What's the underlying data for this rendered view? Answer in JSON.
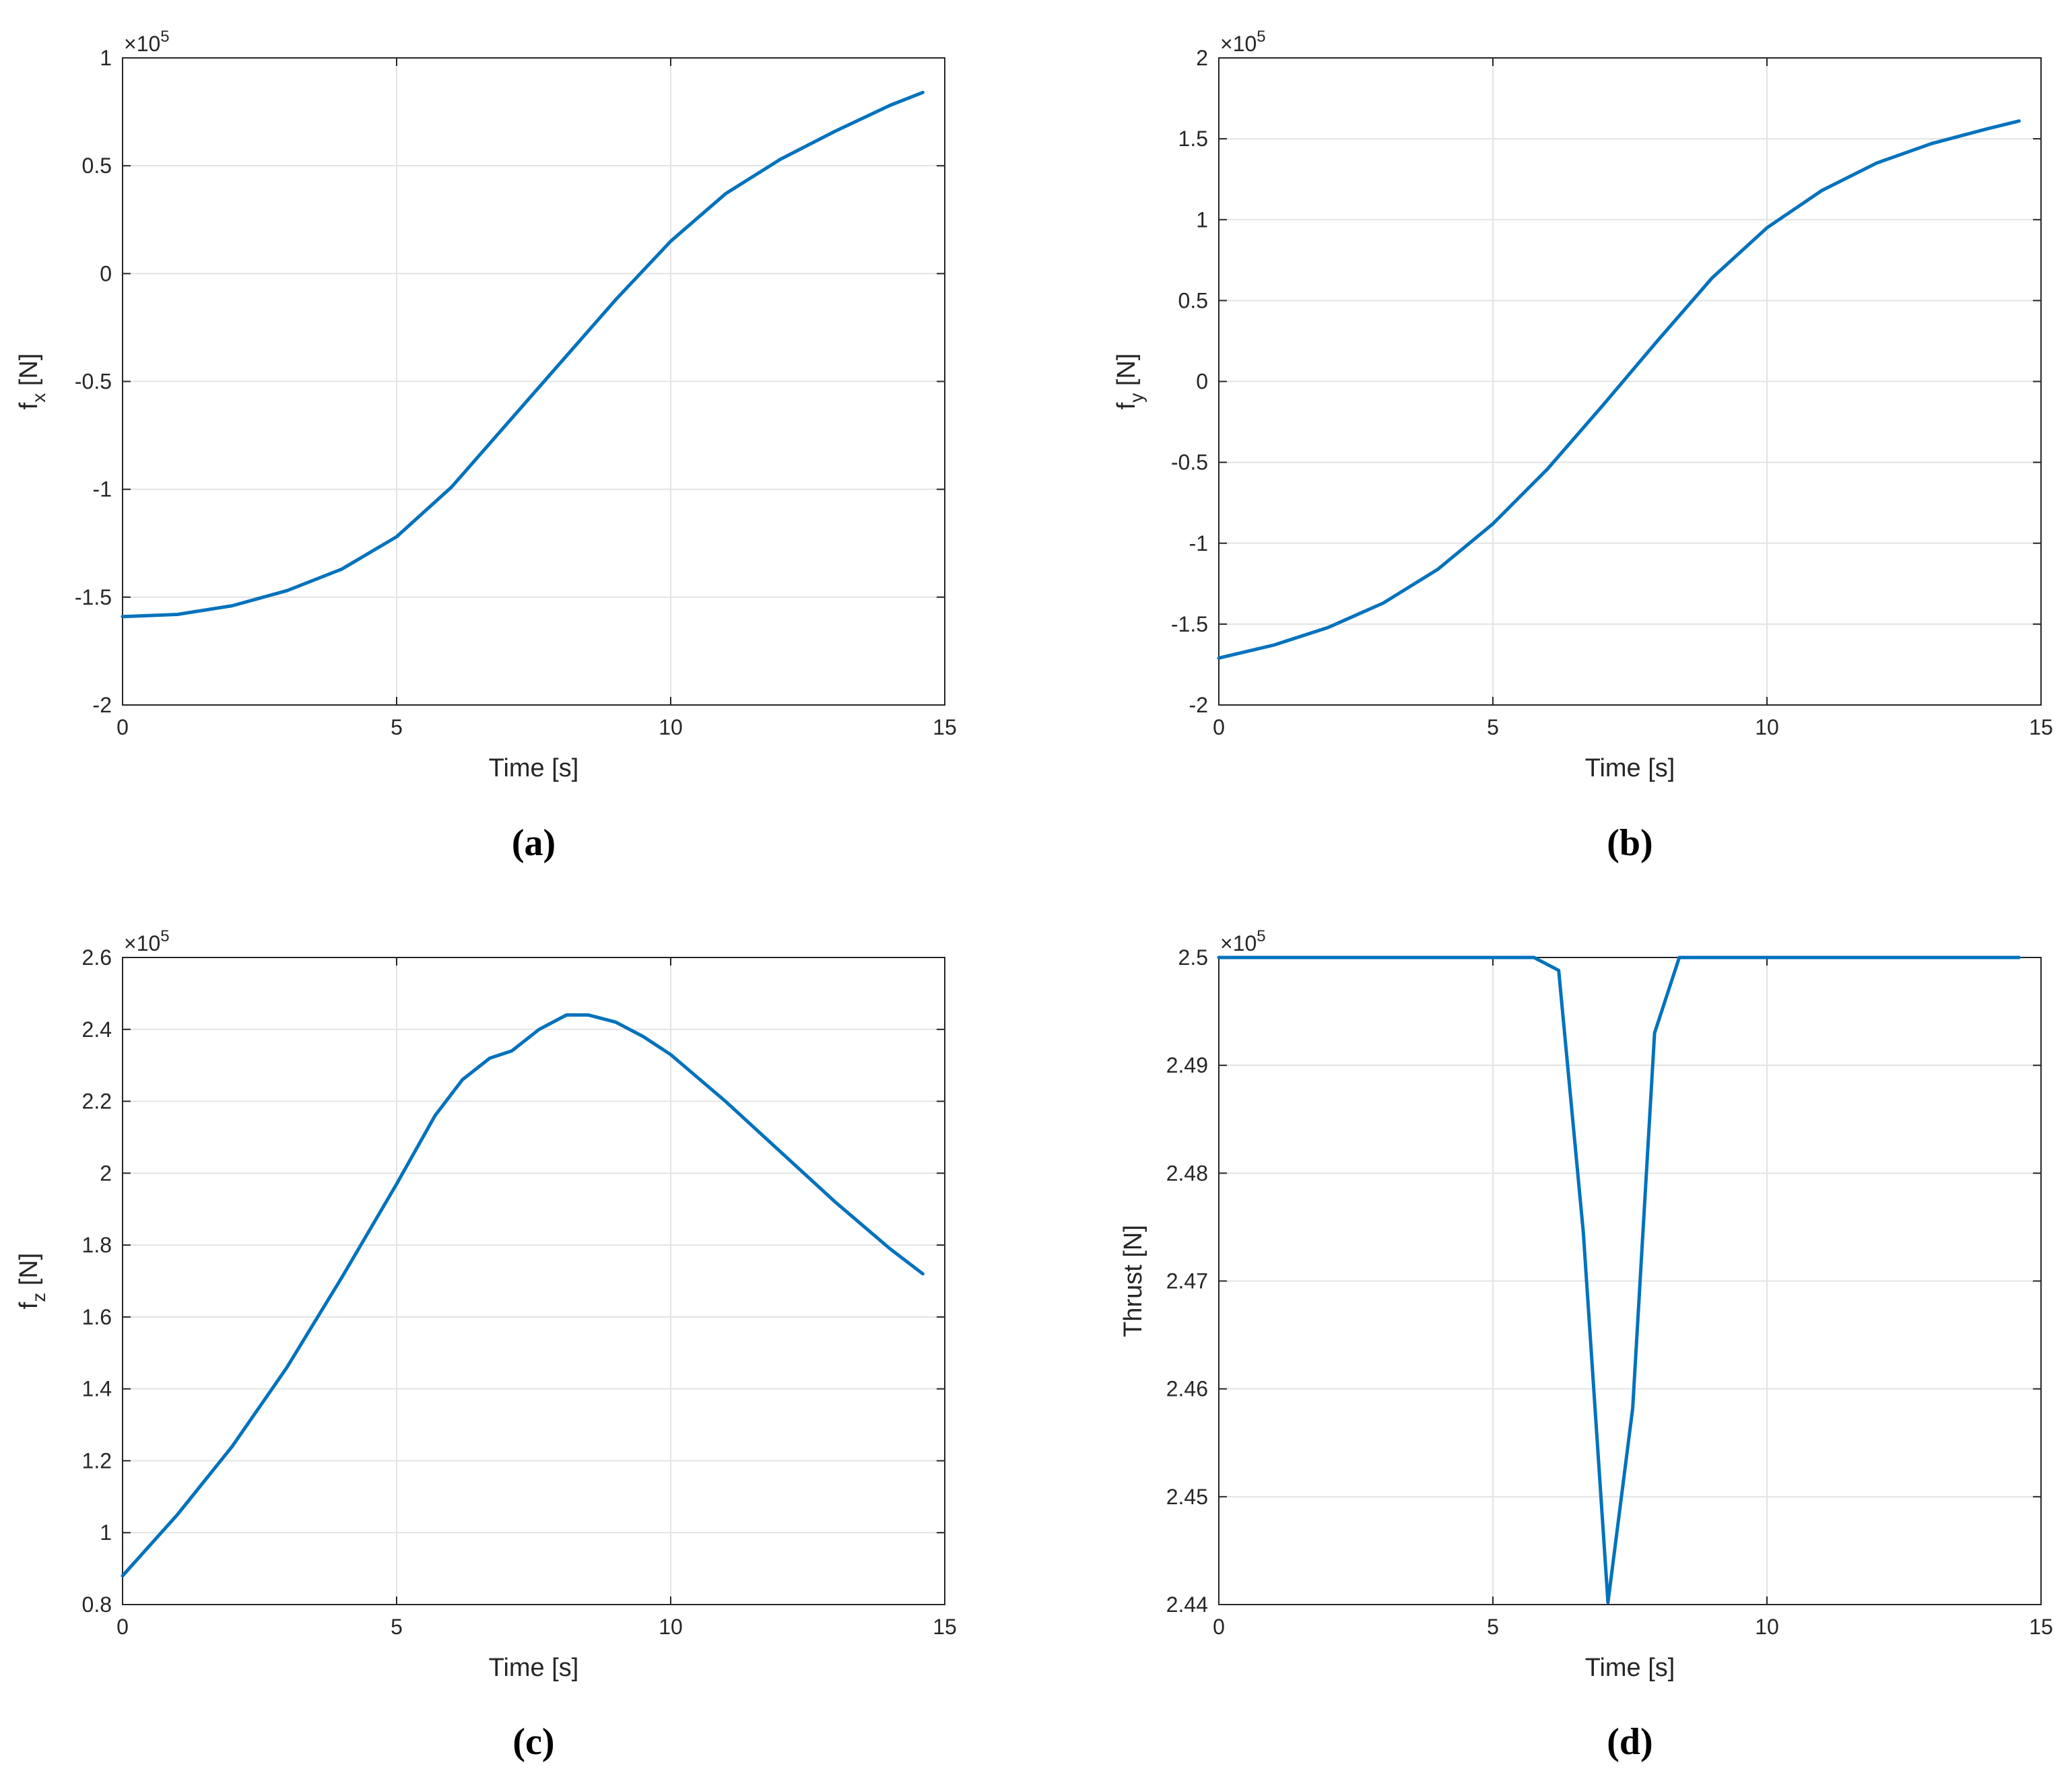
{
  "chart_data": [
    {
      "type": "line",
      "caption": "(a)",
      "xlabel": "Time [s]",
      "ylabel_main": "f",
      "ylabel_sub": "x",
      "ylabel_unit": " [N]",
      "multiplier_base": "×10",
      "multiplier_exp": "5",
      "xlim": [
        0,
        15
      ],
      "ylim": [
        -2,
        1
      ],
      "xticks": [
        0,
        5,
        10,
        15
      ],
      "xticklabels": [
        "0",
        "5",
        "10",
        "15"
      ],
      "yticks": [
        -2,
        -1.5,
        -1,
        -0.5,
        0,
        0.5,
        1
      ],
      "yticklabels": [
        "-2",
        "-1.5",
        "-1",
        "-0.5",
        "0",
        "0.5",
        "1"
      ],
      "grid": true,
      "color": "#0072BD",
      "series": [
        {
          "x": [
            0,
            1,
            2,
            3,
            4,
            5,
            6,
            7,
            8,
            9,
            10,
            11,
            12,
            13,
            14,
            14.6
          ],
          "values": [
            -1.59,
            -1.58,
            -1.54,
            -1.47,
            -1.37,
            -1.22,
            -0.99,
            -0.7,
            -0.41,
            -0.12,
            0.15,
            0.37,
            0.53,
            0.66,
            0.78,
            0.84
          ]
        }
      ]
    },
    {
      "type": "line",
      "caption": "(b)",
      "xlabel": "Time [s]",
      "ylabel_main": "f",
      "ylabel_sub": "y",
      "ylabel_unit": " [N]",
      "multiplier_base": "×10",
      "multiplier_exp": "5",
      "xlim": [
        0,
        15
      ],
      "ylim": [
        -2,
        2
      ],
      "xticks": [
        0,
        5,
        10,
        15
      ],
      "xticklabels": [
        "0",
        "5",
        "10",
        "15"
      ],
      "yticks": [
        -2,
        -1.5,
        -1,
        -0.5,
        0,
        0.5,
        1,
        1.5,
        2
      ],
      "yticklabels": [
        "-2",
        "-1.5",
        "-1",
        "-0.5",
        "0",
        "0.5",
        "1",
        "1.5",
        "2"
      ],
      "grid": true,
      "color": "#0072BD",
      "series": [
        {
          "x": [
            0,
            1,
            2,
            3,
            4,
            5,
            6,
            7,
            8,
            9,
            10,
            11,
            12,
            13,
            14,
            14.6
          ],
          "values": [
            -1.71,
            -1.63,
            -1.52,
            -1.37,
            -1.16,
            -0.88,
            -0.54,
            -0.15,
            0.25,
            0.64,
            0.95,
            1.18,
            1.35,
            1.47,
            1.56,
            1.61
          ]
        }
      ]
    },
    {
      "type": "line",
      "caption": "(c)",
      "xlabel": "Time [s]",
      "ylabel_main": "f",
      "ylabel_sub": "z",
      "ylabel_unit": " [N]",
      "multiplier_base": "×10",
      "multiplier_exp": "5",
      "xlim": [
        0,
        15
      ],
      "ylim": [
        0.8,
        2.6
      ],
      "xticks": [
        0,
        5,
        10,
        15
      ],
      "xticklabels": [
        "0",
        "5",
        "10",
        "15"
      ],
      "yticks": [
        0.8,
        1,
        1.2,
        1.4,
        1.6,
        1.8,
        2,
        2.2,
        2.4,
        2.6
      ],
      "yticklabels": [
        "0.8",
        "1",
        "1.2",
        "1.4",
        "1.6",
        "1.8",
        "2",
        "2.2",
        "2.4",
        "2.6"
      ],
      "grid": true,
      "color": "#0072BD",
      "series": [
        {
          "x": [
            0,
            1,
            2,
            3,
            4,
            5,
            5.7,
            6.2,
            6.7,
            7.1,
            7.6,
            8.1,
            8.5,
            9,
            9.5,
            10,
            11,
            12,
            13,
            14,
            14.6
          ],
          "values": [
            0.88,
            1.05,
            1.24,
            1.46,
            1.71,
            1.97,
            2.16,
            2.26,
            2.32,
            2.34,
            2.4,
            2.44,
            2.44,
            2.42,
            2.38,
            2.33,
            2.2,
            2.06,
            1.92,
            1.79,
            1.72
          ]
        }
      ]
    },
    {
      "type": "line",
      "caption": "(d)",
      "xlabel": "Time [s]",
      "ylabel_main": "Thrust [N]",
      "ylabel_sub": "",
      "ylabel_unit": "",
      "multiplier_base": "×10",
      "multiplier_exp": "5",
      "xlim": [
        0,
        15
      ],
      "ylim": [
        2.44,
        2.5
      ],
      "xticks": [
        0,
        5,
        10,
        15
      ],
      "xticklabels": [
        "0",
        "5",
        "10",
        "15"
      ],
      "yticks": [
        2.44,
        2.45,
        2.46,
        2.47,
        2.48,
        2.49,
        2.5
      ],
      "yticklabels": [
        "2.44",
        "2.45",
        "2.46",
        "2.47",
        "2.48",
        "2.49",
        "2.5"
      ],
      "grid": true,
      "color": "#0072BD",
      "series": [
        {
          "x": [
            0,
            5.75,
            6.2,
            6.65,
            7.1,
            7.55,
            7.95,
            8.4,
            14.6
          ],
          "values": [
            2.5,
            2.5,
            2.4988,
            2.4745,
            2.4402,
            2.4582,
            2.493,
            2.5,
            2.5
          ]
        }
      ]
    }
  ]
}
